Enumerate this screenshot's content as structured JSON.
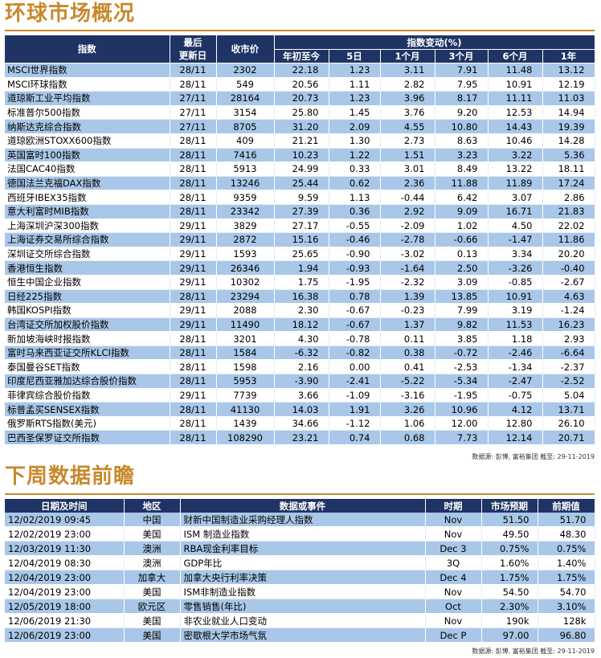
{
  "market": {
    "title": "环球市场概况",
    "headers": {
      "index": "指数",
      "last_update": "最后\n更新日",
      "close": "收市价",
      "change_group": "指数变动(%)",
      "ytd": "年初至今",
      "d5": "5日",
      "m1": "1个月",
      "m3": "3个月",
      "m6": "6个月",
      "y1": "1年"
    },
    "rows": [
      {
        "name": "MSCI世界指数",
        "date": "28/11",
        "close": "2302",
        "ytd": "22.18",
        "d5": "1.23",
        "m1": "3.11",
        "m3": "7.91",
        "m6": "11.48",
        "y1": "13.12"
      },
      {
        "name": "MSCI环球指数",
        "date": "28/11",
        "close": "549",
        "ytd": "20.56",
        "d5": "1.11",
        "m1": "2.82",
        "m3": "7.95",
        "m6": "10.91",
        "y1": "12.19"
      },
      {
        "name": "道琼斯工业平均指数",
        "date": "27/11",
        "close": "28164",
        "ytd": "20.73",
        "d5": "1.23",
        "m1": "3.96",
        "m3": "8.17",
        "m6": "11.11",
        "y1": "11.03"
      },
      {
        "name": "标准普尔500指数",
        "date": "27/11",
        "close": "3154",
        "ytd": "25.80",
        "d5": "1.45",
        "m1": "3.76",
        "m3": "9.20",
        "m6": "12.53",
        "y1": "14.94"
      },
      {
        "name": "纳斯达克综合指数",
        "date": "27/11",
        "close": "8705",
        "ytd": "31.20",
        "d5": "2.09",
        "m1": "4.55",
        "m3": "10.80",
        "m6": "14.43",
        "y1": "19.39"
      },
      {
        "name": "道琼欧洲STOXX600指数",
        "date": "28/11",
        "close": "409",
        "ytd": "21.21",
        "d5": "1.30",
        "m1": "2.73",
        "m3": "8.63",
        "m6": "10.46",
        "y1": "14.28"
      },
      {
        "name": "英国富时100指数",
        "date": "28/11",
        "close": "7416",
        "ytd": "10.23",
        "d5": "1.22",
        "m1": "1.51",
        "m3": "3.23",
        "m6": "3.22",
        "y1": "5.36"
      },
      {
        "name": "法国CAC40指数",
        "date": "28/11",
        "close": "5913",
        "ytd": "24.99",
        "d5": "0.33",
        "m1": "3.01",
        "m3": "8.49",
        "m6": "13.22",
        "y1": "18.11"
      },
      {
        "name": "德国法兰克福DAX指数",
        "date": "28/11",
        "close": "13246",
        "ytd": "25.44",
        "d5": "0.62",
        "m1": "2.36",
        "m3": "11.88",
        "m6": "11.89",
        "y1": "17.24"
      },
      {
        "name": "西班牙IBEX35指数",
        "date": "28/11",
        "close": "9359",
        "ytd": "9.59",
        "d5": "1.13",
        "m1": "-0.44",
        "m3": "6.42",
        "m6": "3.07",
        "y1": "2.86"
      },
      {
        "name": "意大利富时MIB指数",
        "date": "28/11",
        "close": "23342",
        "ytd": "27.39",
        "d5": "0.36",
        "m1": "2.92",
        "m3": "9.09",
        "m6": "16.71",
        "y1": "21.83"
      },
      {
        "name": "上海深圳沪深300指数",
        "date": "29/11",
        "close": "3829",
        "ytd": "27.17",
        "d5": "-0.55",
        "m1": "-2.09",
        "m3": "1.02",
        "m6": "4.50",
        "y1": "22.02"
      },
      {
        "name": "上海证券交易所综合指数",
        "date": "29/11",
        "close": "2872",
        "ytd": "15.16",
        "d5": "-0.46",
        "m1": "-2.78",
        "m3": "-0.66",
        "m6": "-1.47",
        "y1": "11.86"
      },
      {
        "name": "深圳证交所综合指数",
        "date": "29/11",
        "close": "1593",
        "ytd": "25.65",
        "d5": "-0.90",
        "m1": "-3.02",
        "m3": "0.13",
        "m6": "3.34",
        "y1": "20.20"
      },
      {
        "name": "香港恒生指数",
        "date": "29/11",
        "close": "26346",
        "ytd": "1.94",
        "d5": "-0.93",
        "m1": "-1.64",
        "m3": "2.50",
        "m6": "-3.26",
        "y1": "-0.40"
      },
      {
        "name": "恒生中国企业指数",
        "date": "29/11",
        "close": "10302",
        "ytd": "1.75",
        "d5": "-1.95",
        "m1": "-2.32",
        "m3": "3.09",
        "m6": "-0.85",
        "y1": "-2.67"
      },
      {
        "name": "日经225指数",
        "date": "28/11",
        "close": "23294",
        "ytd": "16.38",
        "d5": "0.78",
        "m1": "1.39",
        "m3": "13.85",
        "m6": "10.91",
        "y1": "4.63"
      },
      {
        "name": "韩国KOSPI指数",
        "date": "29/11",
        "close": "2088",
        "ytd": "2.30",
        "d5": "-0.67",
        "m1": "-0.23",
        "m3": "7.99",
        "m6": "3.19",
        "y1": "-1.24"
      },
      {
        "name": "台湾证交所加权股价指数",
        "date": "29/11",
        "close": "11490",
        "ytd": "18.12",
        "d5": "-0.67",
        "m1": "1.37",
        "m3": "9.82",
        "m6": "11.53",
        "y1": "16.23"
      },
      {
        "name": "新加坡海峡时报指数",
        "date": "28/11",
        "close": "3201",
        "ytd": "4.30",
        "d5": "-0.78",
        "m1": "0.11",
        "m3": "3.85",
        "m6": "1.18",
        "y1": "2.93"
      },
      {
        "name": "富时马来西亚证交所KLCI指数",
        "date": "28/11",
        "close": "1584",
        "ytd": "-6.32",
        "d5": "-0.82",
        "m1": "0.38",
        "m3": "-0.72",
        "m6": "-2.46",
        "y1": "-6.64"
      },
      {
        "name": "泰国曼谷SET指数",
        "date": "28/11",
        "close": "1598",
        "ytd": "2.16",
        "d5": "0.00",
        "m1": "0.41",
        "m3": "-2.53",
        "m6": "-1.34",
        "y1": "-2.37"
      },
      {
        "name": "印度尼西亚雅加达综合股价指数",
        "date": "28/11",
        "close": "5953",
        "ytd": "-3.90",
        "d5": "-2.41",
        "m1": "-5.22",
        "m3": "-5.34",
        "m6": "-2.47",
        "y1": "-2.52"
      },
      {
        "name": "菲律宾综合股价指数",
        "date": "29/11",
        "close": "7739",
        "ytd": "3.66",
        "d5": "-1.09",
        "m1": "-3.16",
        "m3": "-1.95",
        "m6": "-0.75",
        "y1": "5.04"
      },
      {
        "name": "标普孟买SENSEX指数",
        "date": "28/11",
        "close": "41130",
        "ytd": "14.03",
        "d5": "1.91",
        "m1": "3.26",
        "m3": "10.96",
        "m6": "4.12",
        "y1": "13.71"
      },
      {
        "name": "俄罗斯RTS指数(美元)",
        "date": "28/11",
        "close": "1439",
        "ytd": "34.66",
        "d5": "-1.12",
        "m1": "1.06",
        "m3": "12.00",
        "m6": "12.80",
        "y1": "26.10"
      },
      {
        "name": "巴西圣保罗证交所指数",
        "date": "28/11",
        "close": "108290",
        "ytd": "23.21",
        "d5": "0.74",
        "m1": "0.68",
        "m3": "7.73",
        "m6": "12.14",
        "y1": "20.71"
      }
    ],
    "source": "数据源: 彭博, 富裕集团 截至: 29-11-2019"
  },
  "week": {
    "title": "下周数据前瞻",
    "headers": {
      "datetime": "日期及时间",
      "region": "地区",
      "event": "数据或事件",
      "period": "时期",
      "forecast": "市场预期",
      "previous": "前期值"
    },
    "rows": [
      {
        "datetime": "12/02/2019 09:45",
        "region": "中国",
        "event": "财新中国制造业采购经理人指数",
        "period": "Nov",
        "forecast": "51.50",
        "previous": "51.70"
      },
      {
        "datetime": "12/02/2019 23:00",
        "region": "美国",
        "event": "ISM 制造业指数",
        "period": "Nov",
        "forecast": "49.50",
        "previous": "48.30"
      },
      {
        "datetime": "12/03/2019 11:30",
        "region": "澳洲",
        "event": "RBA现金利率目标",
        "period": "Dec 3",
        "forecast": "0.75%",
        "previous": "0.75%"
      },
      {
        "datetime": "12/04/2019 08:30",
        "region": "澳洲",
        "event": "GDP年比",
        "period": "3Q",
        "forecast": "1.60%",
        "previous": "1.40%"
      },
      {
        "datetime": "12/04/2019 23:00",
        "region": "加拿大",
        "event": "加拿大央行利率决策",
        "period": "Dec 4",
        "forecast": "1.75%",
        "previous": "1.75%"
      },
      {
        "datetime": "12/04/2019 23:00",
        "region": "美国",
        "event": "ISM非制造业指数",
        "period": "Nov",
        "forecast": "54.50",
        "previous": "54.70"
      },
      {
        "datetime": "12/05/2019 18:00",
        "region": "欧元区",
        "event": "零售销售(年比)",
        "period": "Oct",
        "forecast": "2.30%",
        "previous": "3.10%"
      },
      {
        "datetime": "12/06/2019 21:30",
        "region": "美国",
        "event": "非农业就业人口变动",
        "period": "Nov",
        "forecast": "190k",
        "previous": "128k"
      },
      {
        "datetime": "12/06/2019 23:00",
        "region": "美国",
        "event": "密歇根大学市场气氛",
        "period": "Dec P",
        "forecast": "97.00",
        "previous": "96.80"
      }
    ],
    "source": "数据源: 彭博, 富裕集团 截至: 29-11-2019"
  }
}
